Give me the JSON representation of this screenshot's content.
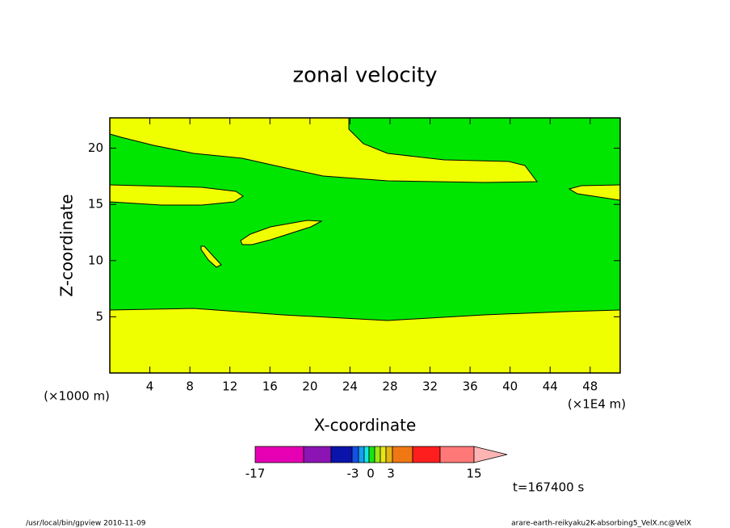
{
  "chart_data": {
    "type": "contour",
    "title": "zonal velocity",
    "x_label": "X-coordinate",
    "y_label": "Z-coordinate",
    "x_unit_label": "(×1E4 m)",
    "y_unit_label": "(×1000 m)",
    "xlim": [
      0,
      51
    ],
    "xticks": [
      4,
      8,
      12,
      16,
      20,
      24,
      28,
      32,
      36,
      40,
      44,
      48
    ],
    "ylim": [
      0,
      22.7
    ],
    "yticks": [
      5,
      10,
      15,
      20
    ],
    "colors": {
      "negative": "#00e600",
      "positive": "#f0ff00"
    },
    "colorbar": {
      "colors": [
        "#e600b4",
        "#8c14b4",
        "#0a14aa",
        "#1450e6",
        "#14a0f0",
        "#14e6e6",
        "#14e614",
        "#a0e614",
        "#e6e614",
        "#e6b414",
        "#f07814",
        "#ff1e1e",
        "#ff7878",
        "#ffb4b4"
      ],
      "ticks": [
        -17,
        -3,
        0,
        3,
        15
      ]
    },
    "time_label": "t=167400 s",
    "footer_left": "/usr/local/bin/gpview  2010-11-09",
    "footer_right": "arare-earth-reikyaku2K-absorbing5_VelX.nc@VelX"
  }
}
